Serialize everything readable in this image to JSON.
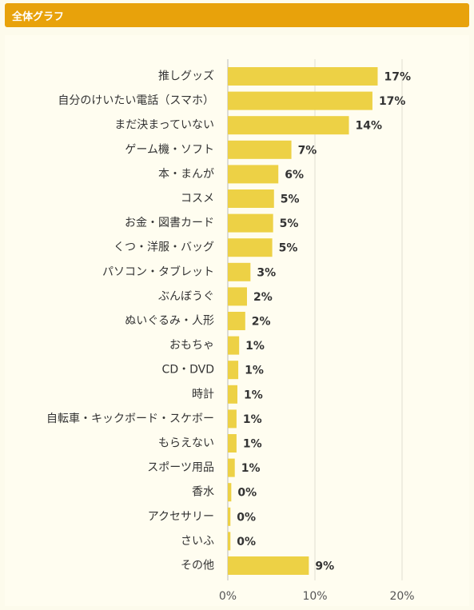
{
  "header": {
    "title": "全体グラフ"
  },
  "chart_data": {
    "type": "bar",
    "orientation": "horizontal",
    "title": "",
    "xlabel": "",
    "ylabel": "",
    "xlim": [
      0,
      25
    ],
    "x_ticks": [
      0,
      10,
      20
    ],
    "x_tick_labels": [
      "0%",
      "10%",
      "20%"
    ],
    "grid": true,
    "bar_color": "#edd145",
    "categories": [
      "推しグッズ",
      "自分のけいたい電話（スマホ）",
      "まだ決まっていない",
      "ゲーム機・ソフト",
      "本・まんが",
      "コスメ",
      "お金・図書カード",
      "くつ・洋服・バッグ",
      "パソコン・タブレット",
      "ぶんぼうぐ",
      "ぬいぐるみ・人形",
      "おもちゃ",
      "CD・DVD",
      "時計",
      "自転車・キックボード・スケボー",
      "もらえない",
      "スポーツ用品",
      "香水",
      "アクセサリー",
      "さいふ",
      "その他"
    ],
    "values": [
      17.2,
      16.6,
      13.9,
      7.3,
      5.8,
      5.3,
      5.2,
      5.1,
      2.6,
      2.2,
      2.0,
      1.3,
      1.2,
      1.1,
      1.0,
      1.0,
      0.8,
      0.4,
      0.3,
      0.3,
      9.3
    ],
    "value_labels": [
      "17%",
      "17%",
      "14%",
      "7%",
      "6%",
      "5%",
      "5%",
      "5%",
      "3%",
      "2%",
      "2%",
      "1%",
      "1%",
      "1%",
      "1%",
      "1%",
      "1%",
      "0%",
      "0%",
      "0%",
      "9%"
    ]
  }
}
